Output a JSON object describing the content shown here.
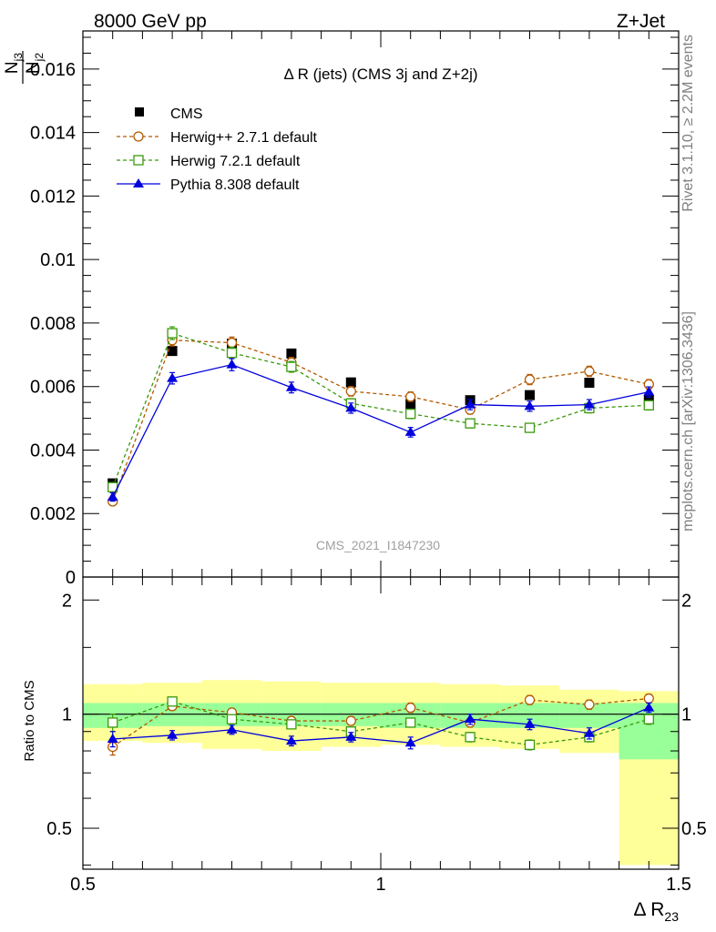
{
  "header": {
    "left": "8000 GeV pp",
    "right": "Z+Jet"
  },
  "side": {
    "rivet": "Rivet 3.1.10, ≥ 2.2M events",
    "mcplots": "mcplots.cern.ch [arXiv:1306.3436]"
  },
  "chart_data": [
    {
      "type": "scatter",
      "title": "Δ R (jets) (CMS 3j and Z+2j)",
      "analysis_label": "CMS_2021_I1847230",
      "ylabel_num": "N",
      "ylabel_num_sub": "j3",
      "ylabel_den": "N",
      "ylabel_den_sub": "j2",
      "xlim": [
        0.5,
        1.5
      ],
      "ylim": [
        0,
        0.0172
      ],
      "y_ticks": [
        "0",
        "0.002",
        "0.004",
        "0.006",
        "0.008",
        "0.01",
        "0.012",
        "0.014",
        "0.016"
      ],
      "legend_position": "top-left",
      "x": [
        0.55,
        0.65,
        0.75,
        0.85,
        0.95,
        1.05,
        1.15,
        1.25,
        1.35,
        1.45
      ],
      "series": [
        {
          "name": "CMS",
          "color": "#000000",
          "marker": "filled-square",
          "line": "none",
          "values": [
            0.00295,
            0.00712,
            0.00735,
            0.00704,
            0.00613,
            0.00545,
            0.00557,
            0.00573,
            0.00612,
            0.00557
          ],
          "errors": [
            0,
            0,
            0,
            0,
            0,
            0,
            0,
            0,
            0,
            0
          ]
        },
        {
          "name": "Herwig++ 2.7.1 default",
          "color": "#b35900",
          "marker": "open-circle",
          "line": "dashed",
          "values": [
            0.00238,
            0.00746,
            0.00738,
            0.00676,
            0.00585,
            0.00568,
            0.00527,
            0.00622,
            0.00648,
            0.00607
          ],
          "errors": [
            0.00012,
            0.00018,
            0.00018,
            0.00016,
            0.00015,
            0.00015,
            0.00014,
            0.00016,
            0.00016,
            0.00015
          ]
        },
        {
          "name": "Herwig 7.2.1 default",
          "color": "#3a9a0a",
          "marker": "open-square",
          "line": "dashed",
          "values": [
            0.00283,
            0.00768,
            0.00706,
            0.00662,
            0.00547,
            0.00514,
            0.00484,
            0.0047,
            0.00532,
            0.00541
          ],
          "errors": [
            0.00015,
            0.0002,
            0.00018,
            0.00017,
            0.00015,
            0.00015,
            0.00014,
            0.00014,
            0.00015,
            0.00015
          ]
        },
        {
          "name": "Pythia 8.308 default",
          "color": "#0000dd",
          "marker": "filled-triangle",
          "line": "solid",
          "values": [
            0.00252,
            0.00626,
            0.00669,
            0.00597,
            0.00532,
            0.00456,
            0.00543,
            0.00538,
            0.00543,
            0.00583
          ],
          "errors": [
            0.00013,
            0.00018,
            0.00019,
            0.00017,
            0.00016,
            0.00015,
            0.00016,
            0.00016,
            0.00016,
            0.00016
          ]
        }
      ]
    },
    {
      "type": "scatter",
      "ylabel": "Ratio to CMS",
      "xlabel": "Δ R",
      "xlabel_sub": "23",
      "xlim": [
        0.5,
        1.5
      ],
      "x_ticks": [
        "0.5",
        "1",
        "1.5"
      ],
      "y_scale": "log",
      "ylim": [
        0.39,
        2.3
      ],
      "y_ticks": [
        "0.5",
        "1",
        "2"
      ],
      "x": [
        0.55,
        0.65,
        0.75,
        0.85,
        0.95,
        1.05,
        1.15,
        1.25,
        1.35,
        1.45
      ],
      "bands": {
        "bins": [
          [
            0.5,
            0.6
          ],
          [
            0.6,
            0.7
          ],
          [
            0.7,
            0.8
          ],
          [
            0.8,
            0.9
          ],
          [
            0.9,
            1.0
          ],
          [
            1.0,
            1.1
          ],
          [
            1.1,
            1.2
          ],
          [
            1.2,
            1.3
          ],
          [
            1.3,
            1.4
          ],
          [
            1.4,
            1.5
          ]
        ],
        "stat": {
          "color": "#99ff99",
          "low": [
            0.92,
            0.93,
            0.93,
            0.93,
            0.93,
            0.92,
            0.92,
            0.92,
            0.92,
            0.76
          ],
          "high": [
            1.07,
            1.07,
            1.07,
            1.07,
            1.07,
            1.07,
            1.07,
            1.07,
            1.07,
            1.07
          ]
        },
        "syst": {
          "color": "#ffff99",
          "low": [
            0.85,
            0.84,
            0.81,
            0.8,
            0.82,
            0.83,
            0.82,
            0.81,
            0.79,
            0.4
          ],
          "high": [
            1.2,
            1.21,
            1.23,
            1.22,
            1.21,
            1.21,
            1.2,
            1.19,
            1.16,
            1.15
          ]
        }
      },
      "series": [
        {
          "name": "Herwig++ 2.7.1 default",
          "color": "#b35900",
          "marker": "open-circle",
          "line": "dashed",
          "values": [
            0.82,
            1.05,
            1.01,
            0.96,
            0.96,
            1.04,
            0.95,
            1.09,
            1.06,
            1.1
          ],
          "errors": [
            0.04,
            0.025,
            0.025,
            0.025,
            0.025,
            0.03,
            0.025,
            0.03,
            0.03,
            0.03
          ]
        },
        {
          "name": "Herwig 7.2.1 default",
          "color": "#3a9a0a",
          "marker": "open-square",
          "line": "dashed",
          "values": [
            0.95,
            1.08,
            0.97,
            0.94,
            0.9,
            0.95,
            0.87,
            0.83,
            0.87,
            0.97
          ],
          "errors": [
            0.05,
            0.025,
            0.025,
            0.025,
            0.025,
            0.025,
            0.025,
            0.025,
            0.025,
            0.03
          ]
        },
        {
          "name": "Pythia 8.308 default",
          "color": "#0000dd",
          "marker": "filled-triangle",
          "line": "solid",
          "values": [
            0.86,
            0.88,
            0.91,
            0.85,
            0.87,
            0.84,
            0.97,
            0.94,
            0.89,
            1.04
          ],
          "errors": [
            0.04,
            0.025,
            0.025,
            0.025,
            0.025,
            0.03,
            0.03,
            0.03,
            0.03,
            0.03
          ]
        }
      ]
    }
  ]
}
